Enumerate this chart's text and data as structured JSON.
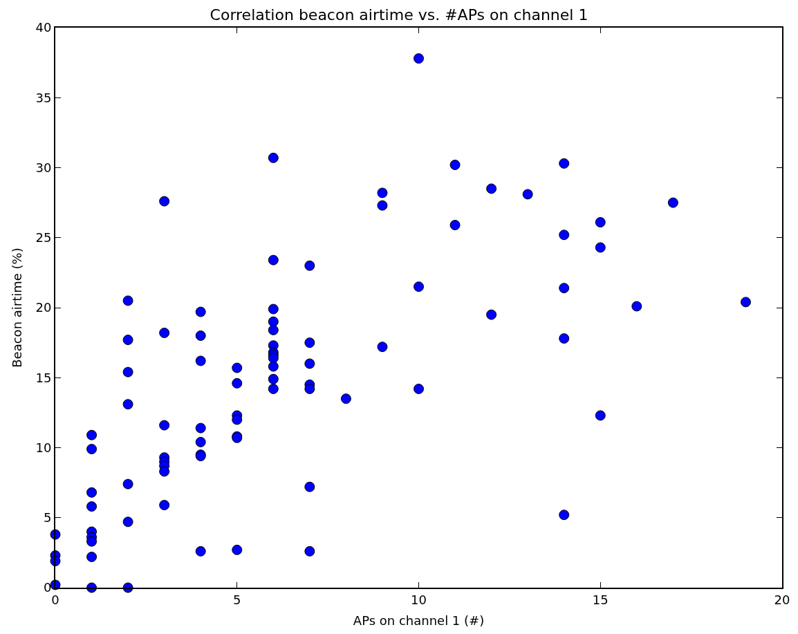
{
  "chart_data": {
    "type": "scatter",
    "title": "Correlation beacon airtime vs. #APs on channel 1",
    "xlabel": "APs on channel 1 (#)",
    "ylabel": "Beacon airtime (%)",
    "x": [
      0,
      0,
      0,
      0,
      1,
      1,
      1,
      1,
      1,
      1,
      1,
      1,
      1,
      2,
      2,
      2,
      2,
      2,
      2,
      2,
      3,
      3,
      3,
      3,
      3,
      3,
      3,
      3,
      4,
      4,
      4,
      4,
      4,
      4,
      4,
      4,
      5,
      5,
      5,
      5,
      5,
      5,
      5,
      6,
      6,
      6,
      6,
      6,
      6,
      6,
      6,
      6,
      6,
      6,
      6,
      7,
      7,
      7,
      7,
      7,
      7,
      7,
      8,
      9,
      9,
      9,
      10,
      10,
      10,
      11,
      11,
      12,
      12,
      13,
      14,
      14,
      14,
      14,
      14,
      15,
      15,
      15,
      16,
      17,
      19
    ],
    "values": [
      3.8,
      2.3,
      1.9,
      0.2,
      10.9,
      9.9,
      6.8,
      5.8,
      4.0,
      3.6,
      3.3,
      2.2,
      0,
      20.5,
      17.7,
      15.4,
      13.1,
      7.4,
      4.7,
      0,
      27.6,
      18.2,
      11.6,
      9.3,
      9.0,
      8.7,
      8.3,
      5.9,
      19.7,
      18.0,
      16.2,
      11.4,
      10.4,
      9.5,
      9.4,
      2.6,
      15.7,
      14.6,
      12.3,
      12.0,
      10.8,
      10.7,
      2.7,
      30.7,
      23.4,
      19.9,
      19.0,
      18.4,
      17.3,
      16.8,
      16.6,
      16.4,
      15.8,
      14.9,
      14.2,
      23.0,
      17.5,
      16.0,
      14.5,
      14.2,
      7.2,
      2.6,
      13.5,
      28.2,
      27.3,
      17.2,
      37.8,
      21.5,
      14.2,
      30.2,
      25.9,
      28.5,
      19.5,
      28.1,
      30.3,
      25.2,
      21.4,
      17.8,
      5.2,
      26.1,
      24.3,
      12.3,
      20.1,
      27.5,
      20.4
    ],
    "color": "#0000ff",
    "marker": "circle",
    "xlim": [
      0,
      20
    ],
    "xticks": [
      0,
      5,
      10,
      15,
      20
    ],
    "ylim": [
      0,
      40
    ],
    "yticks": [
      0,
      5,
      10,
      15,
      20,
      25,
      30,
      35,
      40
    ]
  }
}
